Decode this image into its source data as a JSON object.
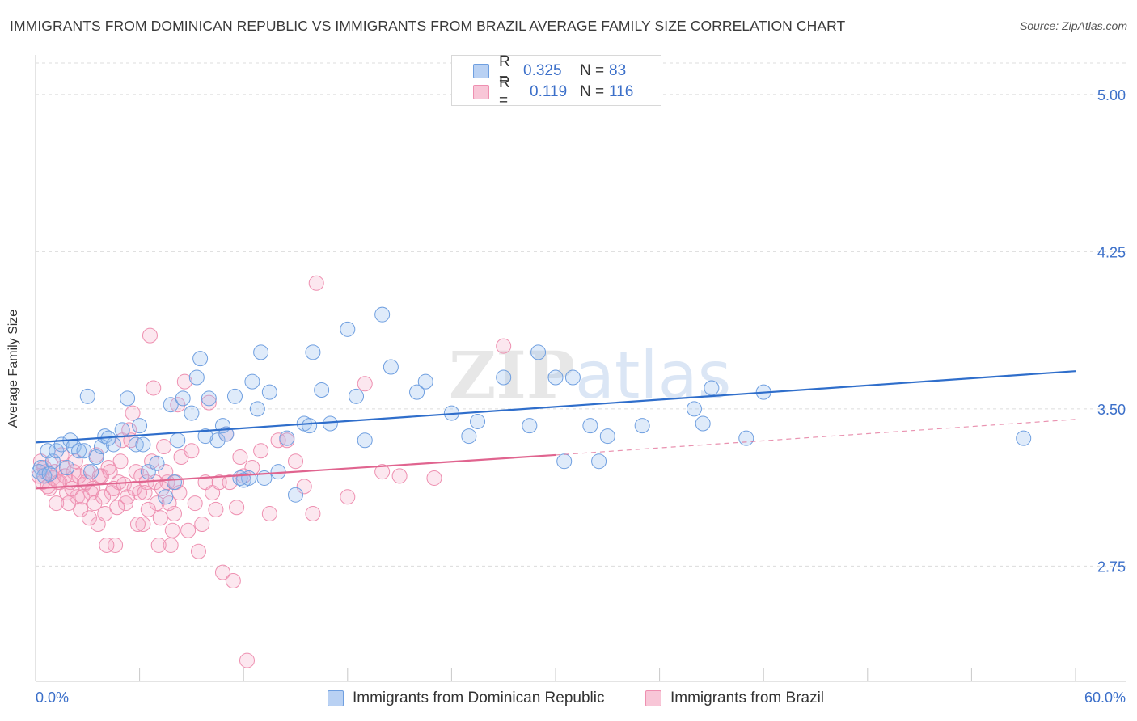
{
  "title": "IMMIGRANTS FROM DOMINICAN REPUBLIC VS IMMIGRANTS FROM BRAZIL AVERAGE FAMILY SIZE CORRELATION CHART",
  "source": "Source: ZipAtlas.com",
  "legend": {
    "r_label": "R =",
    "n_label": "N =",
    "rows": [
      {
        "r": "0.325",
        "n": "83"
      },
      {
        "r": "0.119",
        "n": "116"
      }
    ]
  },
  "bottom_legend": [
    "Immigrants from Dominican Republic",
    "Immigrants from Brazil"
  ],
  "colors": {
    "blue": "#6f9fe0",
    "blue_line": "#2f6ecb",
    "pink": "#ee8fb0",
    "pink_line": "#e0648f",
    "tick_text": "#3b6fc9",
    "grid": "#dcdcdc"
  },
  "chart_data": {
    "type": "scatter",
    "title": "IMMIGRANTS FROM DOMINICAN REPUBLIC VS IMMIGRANTS FROM BRAZIL AVERAGE FAMILY SIZE CORRELATION CHART",
    "xlabel": "",
    "ylabel": "Average Family Size",
    "xlim": [
      0,
      60
    ],
    "ylim": [
      2.2,
      5.15
    ],
    "x_tick_labels": [
      "0.0%",
      "60.0%"
    ],
    "y_ticks": [
      2.75,
      3.5,
      4.25,
      5.0
    ],
    "y_tick_labels": [
      "2.75",
      "3.50",
      "4.25",
      "5.00"
    ],
    "grid": true,
    "legend_position": "top-center",
    "watermark": "ZIPatlas",
    "series": [
      {
        "name": "Immigrants from Dominican Republic",
        "R": 0.325,
        "N": 83,
        "trend": {
          "x": [
            0,
            60
          ],
          "y": [
            3.34,
            3.68
          ]
        },
        "points": [
          [
            0.3,
            3.22
          ],
          [
            0.5,
            3.18
          ],
          [
            0.7,
            3.3
          ],
          [
            1.0,
            3.25
          ],
          [
            1.2,
            3.3
          ],
          [
            1.5,
            3.33
          ],
          [
            2.0,
            3.35
          ],
          [
            2.2,
            3.32
          ],
          [
            2.5,
            3.3
          ],
          [
            3.0,
            3.56
          ],
          [
            3.2,
            3.2
          ],
          [
            3.5,
            3.27
          ],
          [
            3.8,
            3.32
          ],
          [
            4.0,
            3.37
          ],
          [
            4.5,
            3.33
          ],
          [
            5.0,
            3.4
          ],
          [
            5.3,
            3.55
          ],
          [
            5.8,
            3.33
          ],
          [
            6.2,
            3.33
          ],
          [
            6.5,
            3.2
          ],
          [
            7.0,
            3.24
          ],
          [
            7.5,
            3.08
          ],
          [
            7.8,
            3.52
          ],
          [
            8.2,
            3.35
          ],
          [
            8.5,
            3.55
          ],
          [
            9.0,
            3.48
          ],
          [
            9.3,
            3.65
          ],
          [
            9.5,
            3.74
          ],
          [
            10.0,
            3.55
          ],
          [
            10.5,
            3.35
          ],
          [
            10.8,
            3.42
          ],
          [
            11.0,
            3.38
          ],
          [
            11.5,
            3.56
          ],
          [
            12.0,
            3.16
          ],
          [
            12.3,
            3.17
          ],
          [
            12.5,
            3.63
          ],
          [
            12.8,
            3.5
          ],
          [
            13.0,
            3.77
          ],
          [
            13.5,
            3.58
          ],
          [
            14.0,
            3.2
          ],
          [
            14.5,
            3.36
          ],
          [
            15.0,
            3.09
          ],
          [
            15.5,
            3.43
          ],
          [
            16.0,
            3.77
          ],
          [
            16.5,
            3.59
          ],
          [
            17.0,
            3.43
          ],
          [
            18.0,
            3.88
          ],
          [
            18.5,
            3.56
          ],
          [
            19.0,
            3.35
          ],
          [
            20.0,
            3.95
          ],
          [
            20.5,
            3.7
          ],
          [
            22.0,
            3.58
          ],
          [
            22.5,
            3.63
          ],
          [
            24.0,
            3.48
          ],
          [
            25.0,
            3.37
          ],
          [
            25.5,
            3.44
          ],
          [
            27.0,
            3.65
          ],
          [
            29.0,
            3.77
          ],
          [
            30.0,
            3.65
          ],
          [
            28.5,
            3.42
          ],
          [
            31.0,
            3.65
          ],
          [
            32.0,
            3.42
          ],
          [
            33.0,
            3.37
          ],
          [
            32.5,
            3.25
          ],
          [
            35.0,
            3.42
          ],
          [
            38.0,
            3.5
          ],
          [
            38.5,
            3.43
          ],
          [
            39.0,
            3.6
          ],
          [
            41.0,
            3.36
          ],
          [
            42.0,
            3.58
          ],
          [
            57.0,
            3.36
          ],
          [
            30.5,
            3.25
          ],
          [
            2.8,
            3.3
          ],
          [
            4.2,
            3.36
          ],
          [
            6.0,
            3.42
          ],
          [
            8.0,
            3.15
          ],
          [
            9.8,
            3.37
          ],
          [
            11.8,
            3.17
          ],
          [
            13.2,
            3.17
          ],
          [
            15.8,
            3.42
          ],
          [
            0.2,
            3.2
          ],
          [
            0.8,
            3.19
          ],
          [
            1.8,
            3.22
          ]
        ]
      },
      {
        "name": "Immigrants from Brazil",
        "R": 0.119,
        "N": 116,
        "trend": {
          "x": [
            0,
            30
          ],
          "y": [
            3.12,
            3.28
          ]
        },
        "trend_dashed": {
          "x": [
            30,
            60
          ],
          "y": [
            3.28,
            3.45
          ]
        },
        "points": [
          [
            0.2,
            3.18
          ],
          [
            0.4,
            3.15
          ],
          [
            0.6,
            3.2
          ],
          [
            0.8,
            3.12
          ],
          [
            1.0,
            3.17
          ],
          [
            1.2,
            3.05
          ],
          [
            1.4,
            3.15
          ],
          [
            1.6,
            3.22
          ],
          [
            1.8,
            3.1
          ],
          [
            2.0,
            3.15
          ],
          [
            2.2,
            3.2
          ],
          [
            2.4,
            3.08
          ],
          [
            2.6,
            3.02
          ],
          [
            2.8,
            3.14
          ],
          [
            3.0,
            3.2
          ],
          [
            3.2,
            3.1
          ],
          [
            3.4,
            3.05
          ],
          [
            3.6,
            2.95
          ],
          [
            3.8,
            3.18
          ],
          [
            4.0,
            3.0
          ],
          [
            4.2,
            3.22
          ],
          [
            4.4,
            3.1
          ],
          [
            4.6,
            2.85
          ],
          [
            4.8,
            3.15
          ],
          [
            5.0,
            3.35
          ],
          [
            5.2,
            3.05
          ],
          [
            5.4,
            3.4
          ],
          [
            5.6,
            3.48
          ],
          [
            5.8,
            3.2
          ],
          [
            6.0,
            3.1
          ],
          [
            6.2,
            2.95
          ],
          [
            6.4,
            3.15
          ],
          [
            6.6,
            3.85
          ],
          [
            6.8,
            3.6
          ],
          [
            7.0,
            3.05
          ],
          [
            7.2,
            2.98
          ],
          [
            7.4,
            3.32
          ],
          [
            7.6,
            3.15
          ],
          [
            7.8,
            2.85
          ],
          [
            8.0,
            3.0
          ],
          [
            8.2,
            3.52
          ],
          [
            8.4,
            3.27
          ],
          [
            8.6,
            3.63
          ],
          [
            8.8,
            2.92
          ],
          [
            9.0,
            3.3
          ],
          [
            9.2,
            3.05
          ],
          [
            9.4,
            2.82
          ],
          [
            9.6,
            2.95
          ],
          [
            9.8,
            3.15
          ],
          [
            10.0,
            3.53
          ],
          [
            10.2,
            3.1
          ],
          [
            10.4,
            3.02
          ],
          [
            10.6,
            3.15
          ],
          [
            10.8,
            2.72
          ],
          [
            11.0,
            3.38
          ],
          [
            11.2,
            3.15
          ],
          [
            11.4,
            2.68
          ],
          [
            11.6,
            3.03
          ],
          [
            11.8,
            3.27
          ],
          [
            12.0,
            3.18
          ],
          [
            12.5,
            3.22
          ],
          [
            13.0,
            3.3
          ],
          [
            13.5,
            3.0
          ],
          [
            14.0,
            3.35
          ],
          [
            14.5,
            3.35
          ],
          [
            15.0,
            3.25
          ],
          [
            15.5,
            3.13
          ],
          [
            16.0,
            3.0
          ],
          [
            16.2,
            4.1
          ],
          [
            18.0,
            3.08
          ],
          [
            19.0,
            3.62
          ],
          [
            20.0,
            3.2
          ],
          [
            21.0,
            3.18
          ],
          [
            23.0,
            3.17
          ],
          [
            27.0,
            3.8
          ],
          [
            12.2,
            2.3
          ],
          [
            0.3,
            3.25
          ],
          [
            0.5,
            3.22
          ],
          [
            0.7,
            3.13
          ],
          [
            1.1,
            3.2
          ],
          [
            1.3,
            3.15
          ],
          [
            1.5,
            3.28
          ],
          [
            1.7,
            3.18
          ],
          [
            1.9,
            3.05
          ],
          [
            2.1,
            3.12
          ],
          [
            2.3,
            3.25
          ],
          [
            2.5,
            3.18
          ],
          [
            2.7,
            3.08
          ],
          [
            2.9,
            3.15
          ],
          [
            3.1,
            2.98
          ],
          [
            3.3,
            3.12
          ],
          [
            3.5,
            3.28
          ],
          [
            3.7,
            3.18
          ],
          [
            3.9,
            3.08
          ],
          [
            4.1,
            2.85
          ],
          [
            4.3,
            3.2
          ],
          [
            4.5,
            3.12
          ],
          [
            4.7,
            3.03
          ],
          [
            4.9,
            3.25
          ],
          [
            5.1,
            3.14
          ],
          [
            5.3,
            3.08
          ],
          [
            5.5,
            3.35
          ],
          [
            5.7,
            3.12
          ],
          [
            5.9,
            2.95
          ],
          [
            6.1,
            3.18
          ],
          [
            6.3,
            3.1
          ],
          [
            6.5,
            3.02
          ],
          [
            6.7,
            3.25
          ],
          [
            6.9,
            3.15
          ],
          [
            7.1,
            2.85
          ],
          [
            7.3,
            3.12
          ],
          [
            7.5,
            3.2
          ],
          [
            7.7,
            3.05
          ],
          [
            7.9,
            2.92
          ],
          [
            8.1,
            3.15
          ],
          [
            8.3,
            3.1
          ]
        ]
      }
    ]
  }
}
